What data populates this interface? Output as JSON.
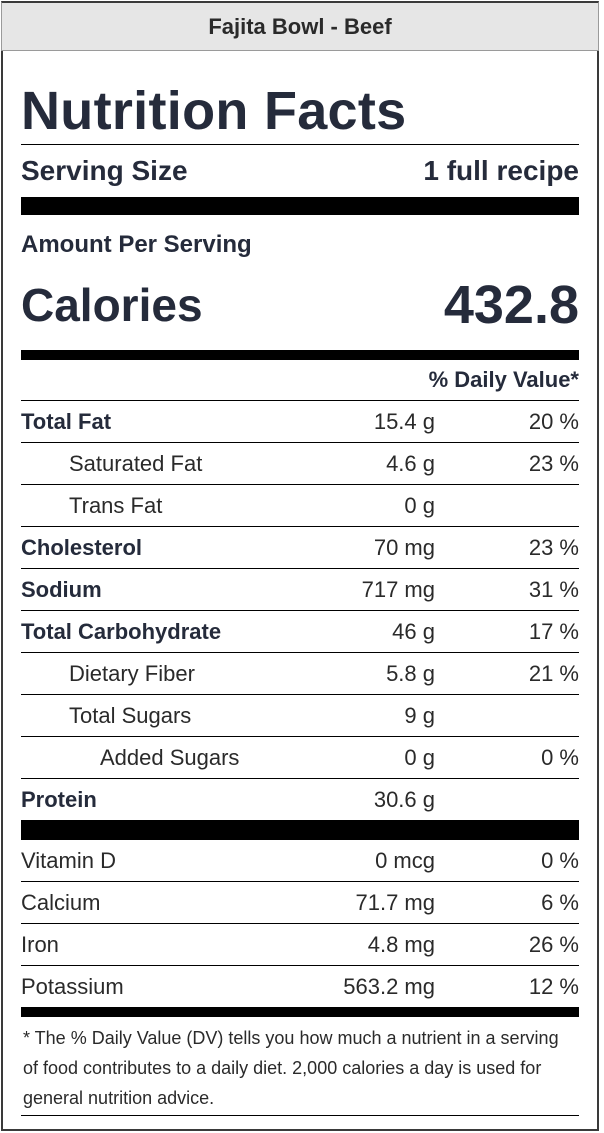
{
  "title_bar": "Fajita Bowl - Beef",
  "heading": "Nutrition Facts",
  "serving": {
    "label": "Serving Size",
    "value": "1 full recipe"
  },
  "amount_per_serving": "Amount Per Serving",
  "calories": {
    "label": "Calories",
    "value": "432.8"
  },
  "daily_value_header": "% Daily Value*",
  "nutrients": [
    {
      "name": "Total Fat",
      "amount": "15.4 g",
      "dv": "20 %"
    },
    {
      "name": "Saturated Fat",
      "amount": "4.6 g",
      "dv": "23 %"
    },
    {
      "name": "Trans Fat",
      "amount": "0 g",
      "dv": ""
    },
    {
      "name": "Cholesterol",
      "amount": "70 mg",
      "dv": "23 %"
    },
    {
      "name": "Sodium",
      "amount": "717 mg",
      "dv": "31 %"
    },
    {
      "name": "Total Carbohydrate",
      "amount": "46 g",
      "dv": "17 %"
    },
    {
      "name": "Dietary Fiber",
      "amount": "5.8 g",
      "dv": "21 %"
    },
    {
      "name": "Total Sugars",
      "amount": "9 g",
      "dv": ""
    },
    {
      "name": "Added Sugars",
      "amount": "0 g",
      "dv": "0 %"
    },
    {
      "name": "Protein",
      "amount": "30.6 g",
      "dv": ""
    }
  ],
  "vitamins": [
    {
      "name": "Vitamin D",
      "amount": "0 mcg",
      "dv": "0 %"
    },
    {
      "name": "Calcium",
      "amount": "71.7 mg",
      "dv": "6 %"
    },
    {
      "name": "Iron",
      "amount": "4.8 mg",
      "dv": "26 %"
    },
    {
      "name": "Potassium",
      "amount": "563.2 mg",
      "dv": "12 %"
    }
  ],
  "footnote": "* The % Daily Value (DV) tells you how much a nutrient in a serving of food contributes to a daily diet. 2,000 calories a day is used for general nutrition advice."
}
